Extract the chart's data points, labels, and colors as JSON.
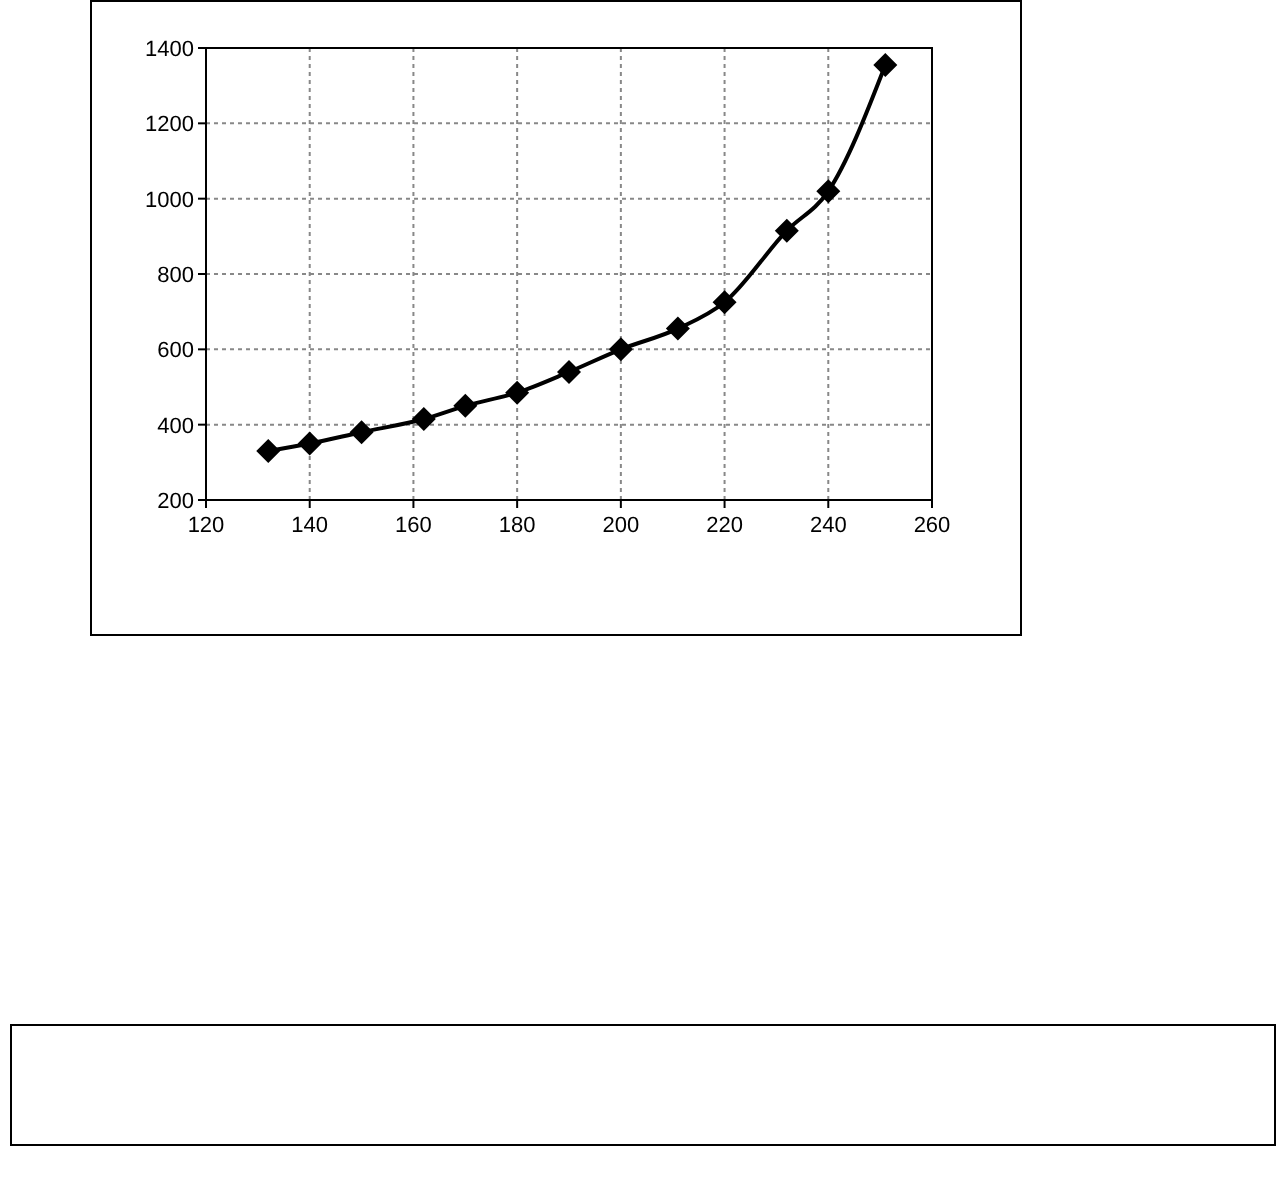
{
  "chart_data": {
    "type": "line",
    "x": [
      132,
      140,
      150,
      162,
      170,
      180,
      190,
      200,
      211,
      220,
      232,
      240,
      251
    ],
    "values": [
      330,
      350,
      380,
      415,
      450,
      485,
      540,
      600,
      655,
      725,
      915,
      1020,
      1355
    ],
    "color": "#000000",
    "xlim": [
      120,
      260
    ],
    "xticks": [
      120,
      140,
      160,
      180,
      200,
      220,
      240,
      260
    ],
    "ylim": [
      200,
      1400
    ],
    "yticks": [
      200,
      400,
      600,
      800,
      1000,
      1200,
      1400
    ],
    "grid": true,
    "marker": "diamond",
    "line_style": "solid"
  }
}
